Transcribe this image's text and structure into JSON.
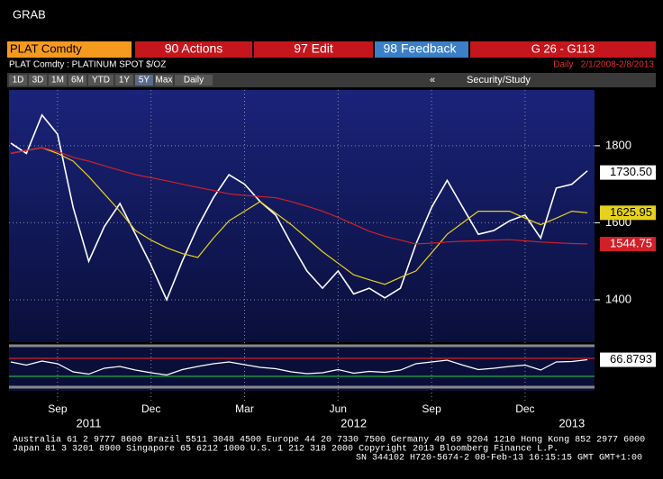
{
  "header": {
    "title": "GRAB",
    "ticker": "PLAT Comdty",
    "actions": "90 Actions",
    "edit": "97 Edit",
    "feedback": "98 Feedback",
    "page": "G 26 - G113",
    "description": "PLAT Comdty : PLATINUM SPOT $/OZ",
    "range": "Daily   2/1/2008-2/8/2013"
  },
  "toolbar": {
    "buttons": [
      "1D",
      "3D",
      "1M",
      "6M",
      "YTD",
      "1Y",
      "5Y",
      "Max",
      "Daily"
    ],
    "collapse": "«",
    "study": "Security/Study"
  },
  "chart_data": [
    {
      "type": "line",
      "grid": true,
      "categories": [
        null,
        null,
        null,
        "Sep",
        null,
        null,
        null,
        null,
        null,
        "Dec",
        null,
        null,
        null,
        null,
        null,
        "Mar",
        null,
        null,
        null,
        null,
        null,
        "Jun",
        null,
        null,
        null,
        null,
        null,
        "Sep",
        null,
        null,
        null,
        null,
        null,
        "Dec",
        null,
        null,
        null,
        null
      ],
      "year_labels": [
        null,
        null,
        null,
        null,
        null,
        "2011",
        null,
        null,
        null,
        null,
        null,
        null,
        null,
        null,
        null,
        null,
        null,
        null,
        null,
        null,
        null,
        null,
        "2012",
        null,
        null,
        null,
        null,
        null,
        null,
        null,
        null,
        null,
        null,
        null,
        null,
        null,
        "2013",
        null
      ],
      "ylim": [
        1290,
        1940
      ],
      "yticks": [
        1400,
        1600,
        1800
      ],
      "series": [
        {
          "color": "#ffffff",
          "values": [
            1807,
            1780,
            1880,
            1830,
            1640,
            1500,
            1590,
            1650,
            1570,
            1490,
            1400,
            1500,
            1590,
            1665,
            1725,
            1700,
            1655,
            1620,
            1545,
            1475,
            1430,
            1475,
            1415,
            1430,
            1405,
            1430,
            1545,
            1640,
            1710,
            1640,
            1570,
            1580,
            1605,
            1620,
            1560,
            1690,
            1700,
            1735
          ],
          "last_value": 1730.5,
          "last_label": "1730.50",
          "tag_text": "#000000"
        },
        {
          "color": "#e6d21e",
          "values": [
            1780,
            1788,
            1795,
            1780,
            1760,
            1720,
            1675,
            1630,
            1580,
            1555,
            1535,
            1520,
            1510,
            1560,
            1605,
            1630,
            1655,
            1625,
            1595,
            1560,
            1525,
            1495,
            1465,
            1452,
            1440,
            1458,
            1475,
            1522,
            1570,
            1600,
            1630,
            1630,
            1630,
            1612,
            1595,
            1612,
            1630,
            1626
          ],
          "last_value": 1625.95,
          "last_label": "1625.95",
          "tag_text": "#000000"
        },
        {
          "color": "#d02028",
          "values": [
            1780,
            1788,
            1795,
            1785,
            1770,
            1760,
            1748,
            1736,
            1725,
            1717,
            1709,
            1700,
            1692,
            1684,
            1675,
            1671,
            1668,
            1665,
            1655,
            1643,
            1630,
            1614,
            1596,
            1578,
            1565,
            1555,
            1545,
            1547,
            1550,
            1552,
            1553,
            1555,
            1556,
            1553,
            1550,
            1548,
            1546,
            1545
          ],
          "last_value": 1544.75,
          "last_label": "1544.75",
          "tag_text": "#ffffff"
        }
      ]
    },
    {
      "type": "line",
      "ylim": [
        10,
        90
      ],
      "levels": [
        {
          "value": 70,
          "color": "#d02028"
        },
        {
          "value": 30,
          "color": "#20b040"
        }
      ],
      "series": [
        {
          "color": "#ffffff",
          "values": [
            62,
            55,
            64,
            58,
            40,
            35,
            48,
            52,
            44,
            38,
            33,
            45,
            52,
            58,
            62,
            56,
            50,
            47,
            40,
            36,
            38,
            45,
            37,
            41,
            39,
            44,
            58,
            62,
            66,
            55,
            45,
            48,
            52,
            55,
            44,
            62,
            63,
            67
          ],
          "last_value": 66.8793,
          "last_label": "66.8793",
          "tag_text": "#000000"
        }
      ]
    }
  ],
  "footer": [
    "Australia 61 2 9777 8600 Brazil 5511 3048 4500 Europe 44 20 7330 7500 Germany 49 69 9204 1210 Hong Kong 852 2977 6000",
    "Japan 81 3 3201 8900      Singapore 65 6212 1000      U.S. 1 212 318 2000      Copyright 2013 Bloomberg Finance L.P.",
    "SN 344102 H720-5674-2 08-Feb-13 16:15:15 GMT  GMT+1:00"
  ]
}
